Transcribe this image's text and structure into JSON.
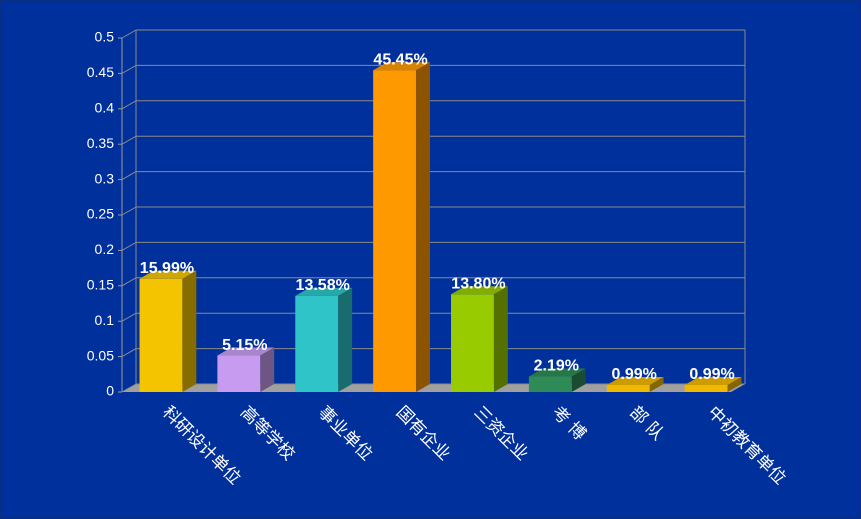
{
  "chart_data": {
    "type": "bar",
    "categories": [
      "科研设计单位",
      "高等学校",
      "事业单位",
      "国有企业",
      "三资企业",
      "考 博",
      "部 队",
      "中初教育单位"
    ],
    "values": [
      0.1599,
      0.0515,
      0.1358,
      0.4545,
      0.138,
      0.0219,
      0.0099,
      0.0099
    ],
    "value_labels": [
      "15.99%",
      "5.15%",
      "13.58%",
      "45.45%",
      "13.80%",
      "2.19%",
      "0.99%",
      "0.99%"
    ],
    "colors": [
      "#f5c400",
      "#c79cf0",
      "#2ec4c8",
      "#ff9900",
      "#99cc00",
      "#2e8b57",
      "#f0b800",
      "#f0b800"
    ],
    "ylim": [
      0,
      0.5
    ],
    "yticks": [
      0,
      0.05,
      0.1,
      0.15,
      0.2,
      0.25,
      0.3,
      0.35,
      0.4,
      0.45,
      0.5
    ],
    "grid": true
  }
}
